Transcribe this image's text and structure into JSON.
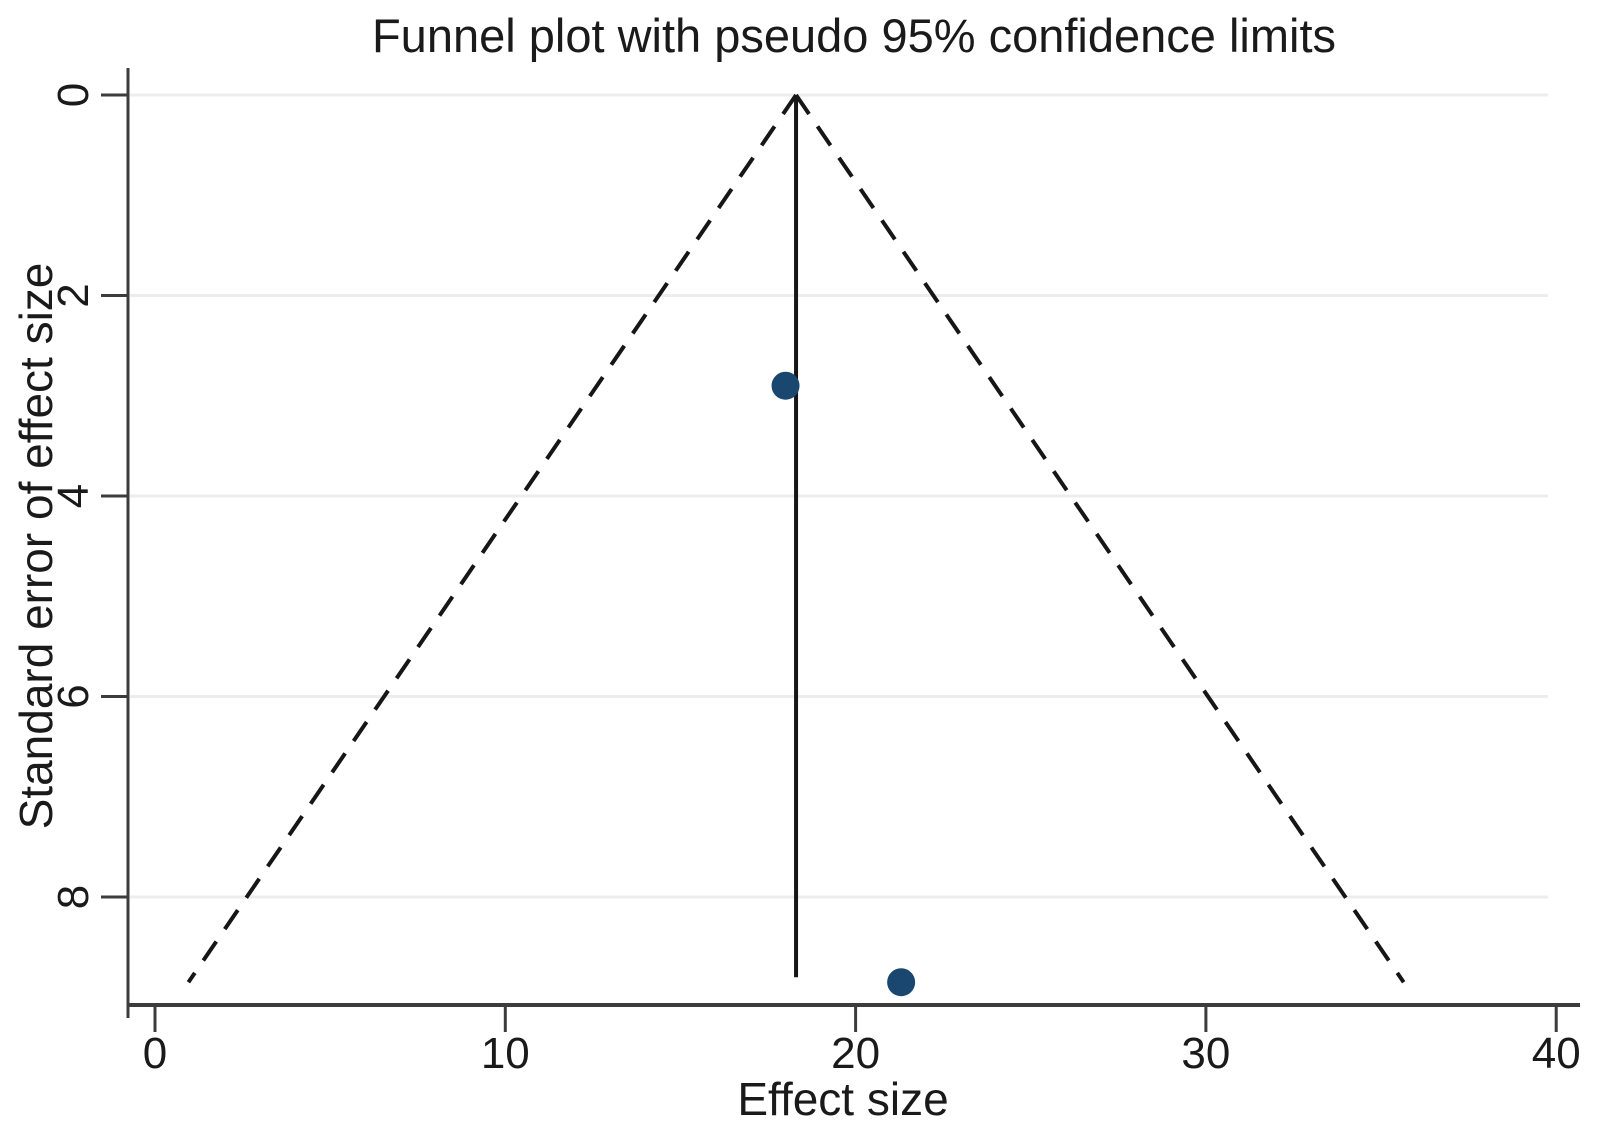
{
  "chart_data": {
    "type": "scatter",
    "subtype": "funnel-plot",
    "title": "Funnel plot with pseudo 95% confidence limits",
    "xlabel": "Effect size",
    "ylabel": "Standard error of effect size",
    "x_ticks": [
      0,
      10,
      20,
      30,
      40
    ],
    "y_ticks": [
      0,
      2,
      4,
      6,
      8
    ],
    "xlim": [
      -0.8,
      40.7
    ],
    "ylim": [
      0,
      9.1
    ],
    "y_axis_inverted": true,
    "grid": "horizontal-only",
    "legend": "none",
    "points": [
      {
        "effect_size": 18.0,
        "standard_error": 2.9
      },
      {
        "effect_size": 21.3,
        "standard_error": 8.85
      }
    ],
    "pooled_effect_line": {
      "effect_size": 18.3,
      "se_from": 0,
      "se_to": 8.8,
      "style": "solid"
    },
    "pseudo_ci_limits": {
      "center": 18.3,
      "multiplier": 1.96,
      "se_from": 0,
      "se_to": 8.85,
      "style": "dashed"
    },
    "colors": {
      "marker": "#1a476f",
      "lines": "#161616",
      "grid": "#ededed",
      "axis": "#3c3c3c",
      "text": "#1a1a1a",
      "background": "#ffffff"
    }
  }
}
